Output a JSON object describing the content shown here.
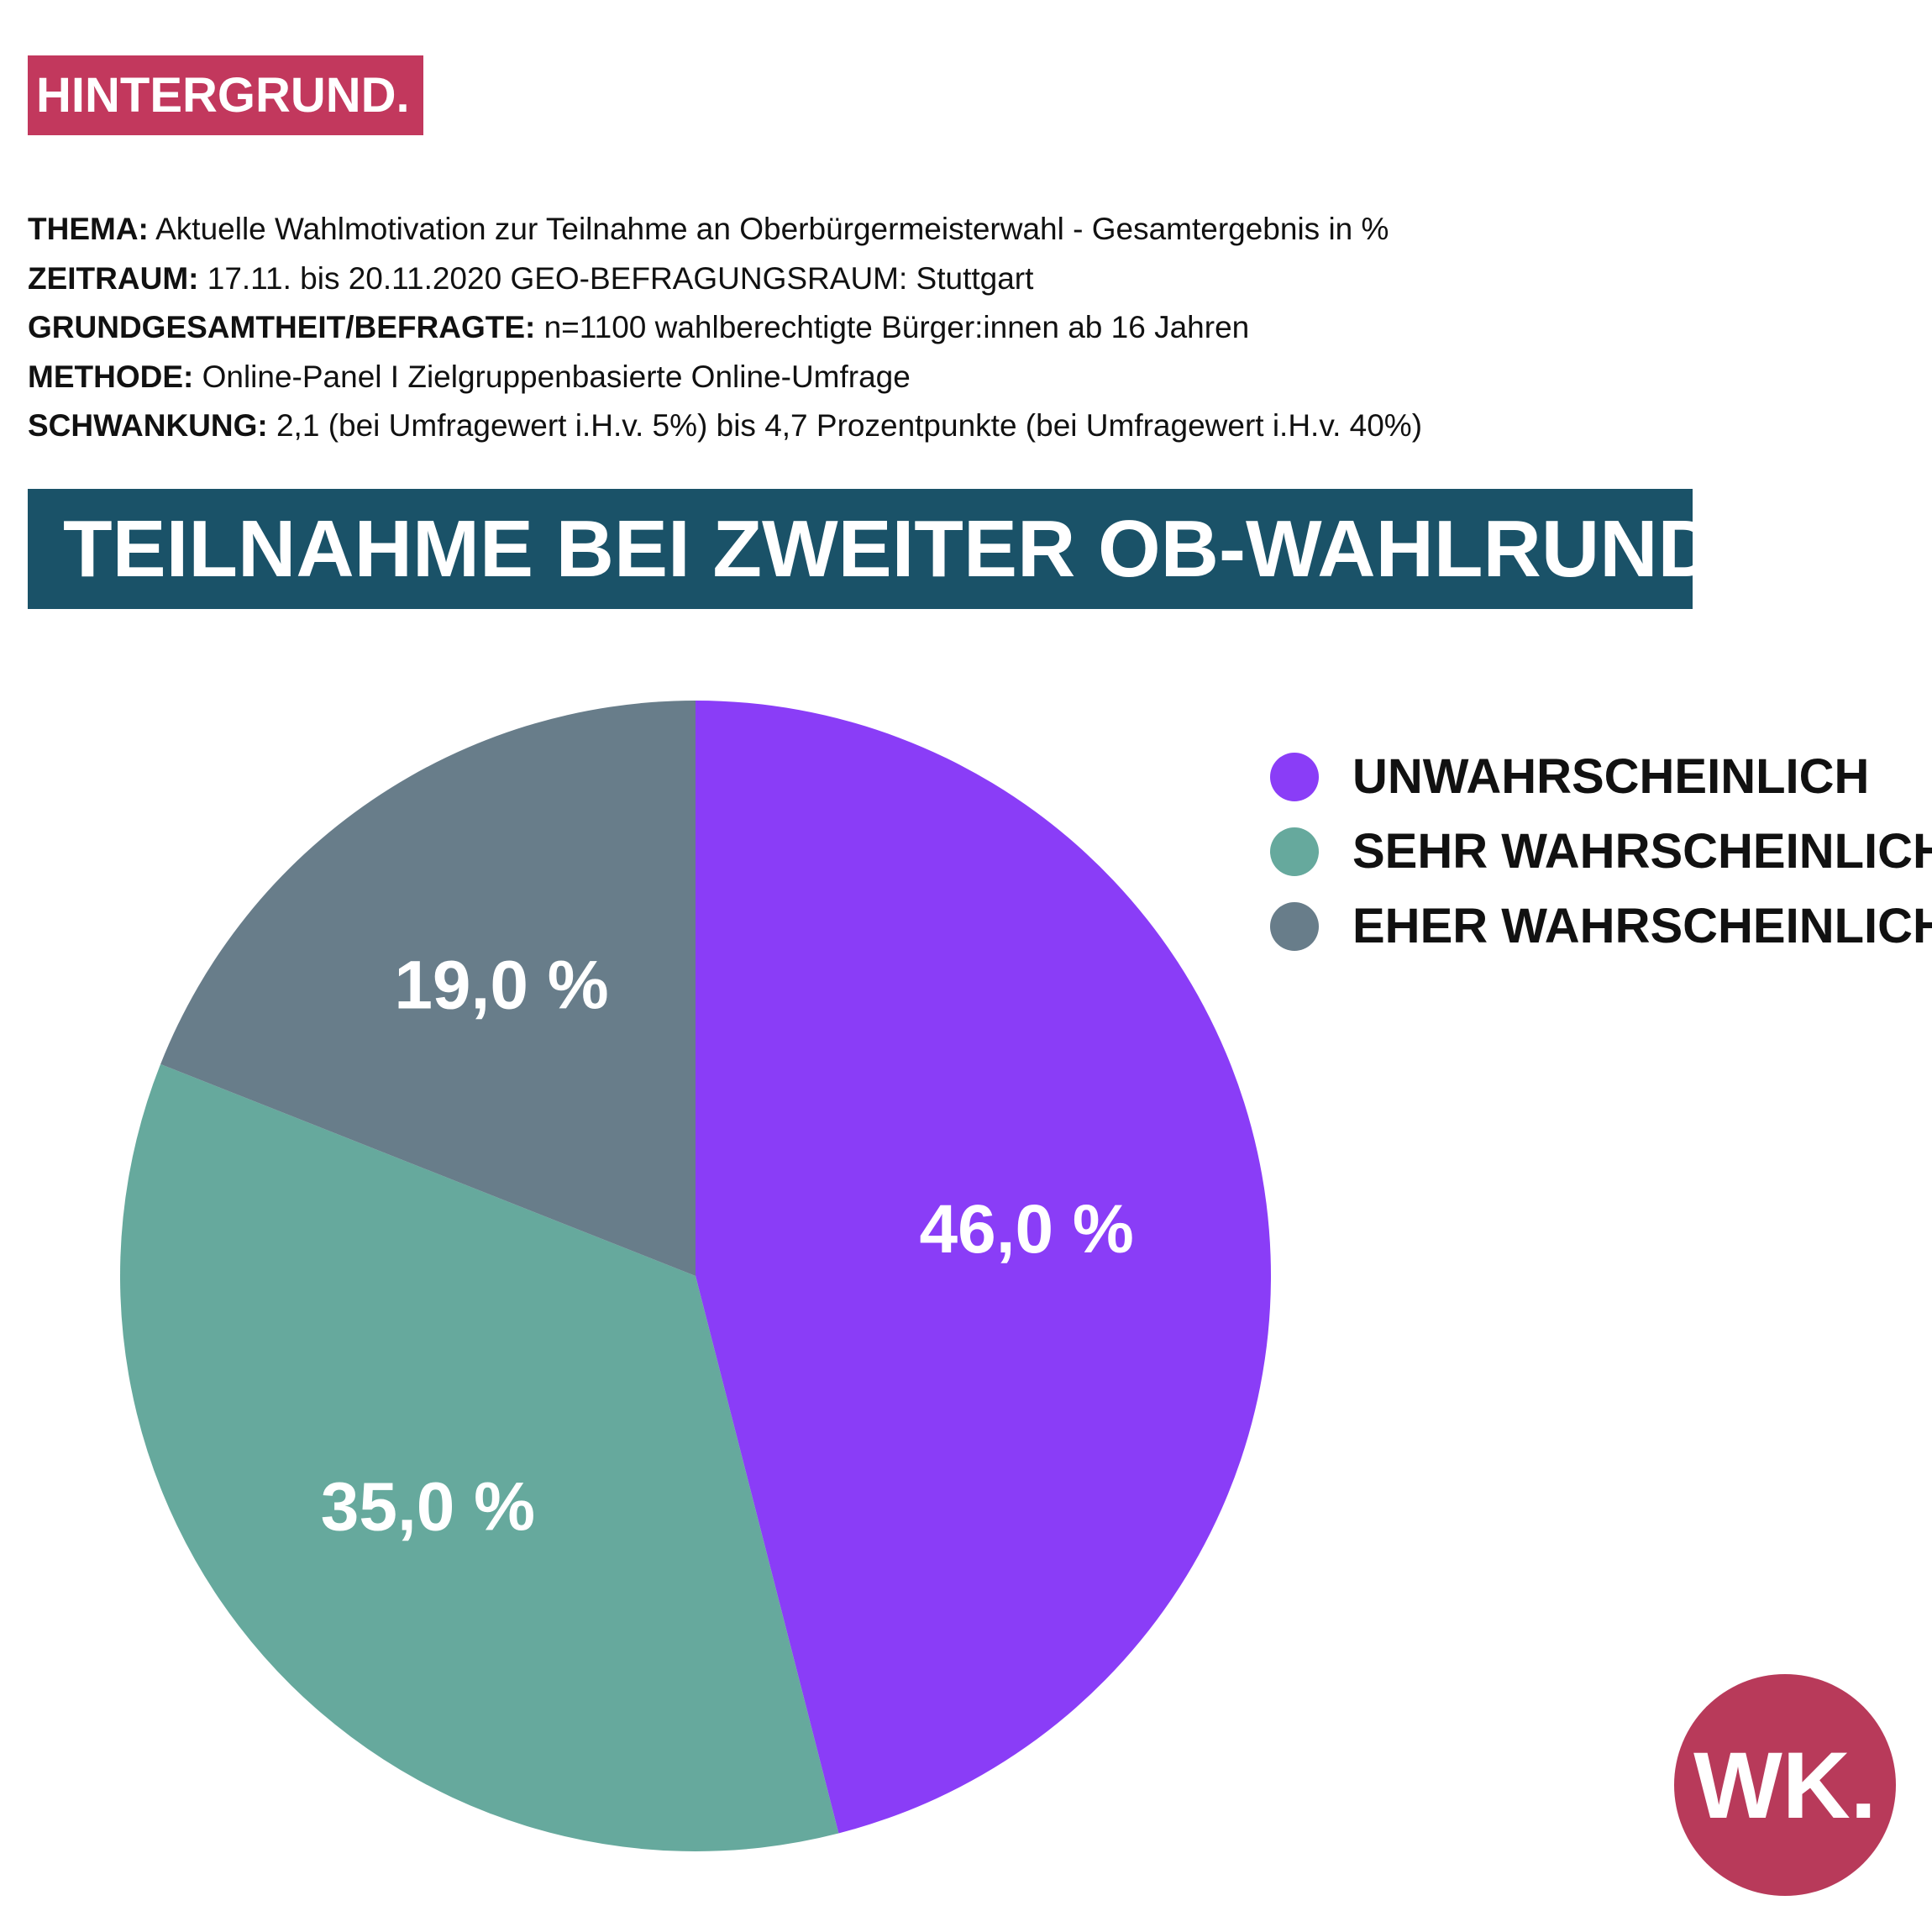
{
  "badge": {
    "label": "HINTERGRUND."
  },
  "meta": [
    {
      "key": "THEMA:",
      "value": " Aktuelle Wahlmotivation zur Teilnahme an Oberbürgermeisterwahl - Gesamtergebnis in %"
    },
    {
      "key": "ZEITRAUM:",
      "value": " 17.11. bis 20.11.2020 GEO-BEFRAGUNGSRAUM: Stuttgart"
    },
    {
      "key": "GRUNDGESAMTHEIT/BEFRAGTE:",
      "value": " n=1100 wahlberechtigte Bürger:innen ab 16 Jahren"
    },
    {
      "key": "METHODE:",
      "value": " Online-Panel I Zielgruppenbasierte Online-Umfrage"
    },
    {
      "key": "SCHWANKUNG:",
      "value": " 2,1 (bei Umfragewert i.H.v. 5%) bis 4,7 Prozentpunkte (bei Umfragewert i.H.v. 40%)"
    }
  ],
  "chart_data": {
    "type": "pie",
    "title": "TEILNAHME BEI ZWEITER OB-WAHLRUNDE?",
    "unit": "%",
    "legend_position": "top-right",
    "slices": [
      {
        "label": "UNWAHRSCHEINLICH",
        "value": 46.0,
        "display": "46,0 %",
        "color": "#8a3df7"
      },
      {
        "label": "SEHR WAHRSCHEINLICH",
        "value": 35.0,
        "display": "35,0 %",
        "color": "#66a99d"
      },
      {
        "label": "EHER WAHRSCHEINLICH",
        "value": 19.0,
        "display": "19,0 %",
        "color": "#687d8a"
      }
    ]
  },
  "logo": {
    "text": "WK."
  }
}
